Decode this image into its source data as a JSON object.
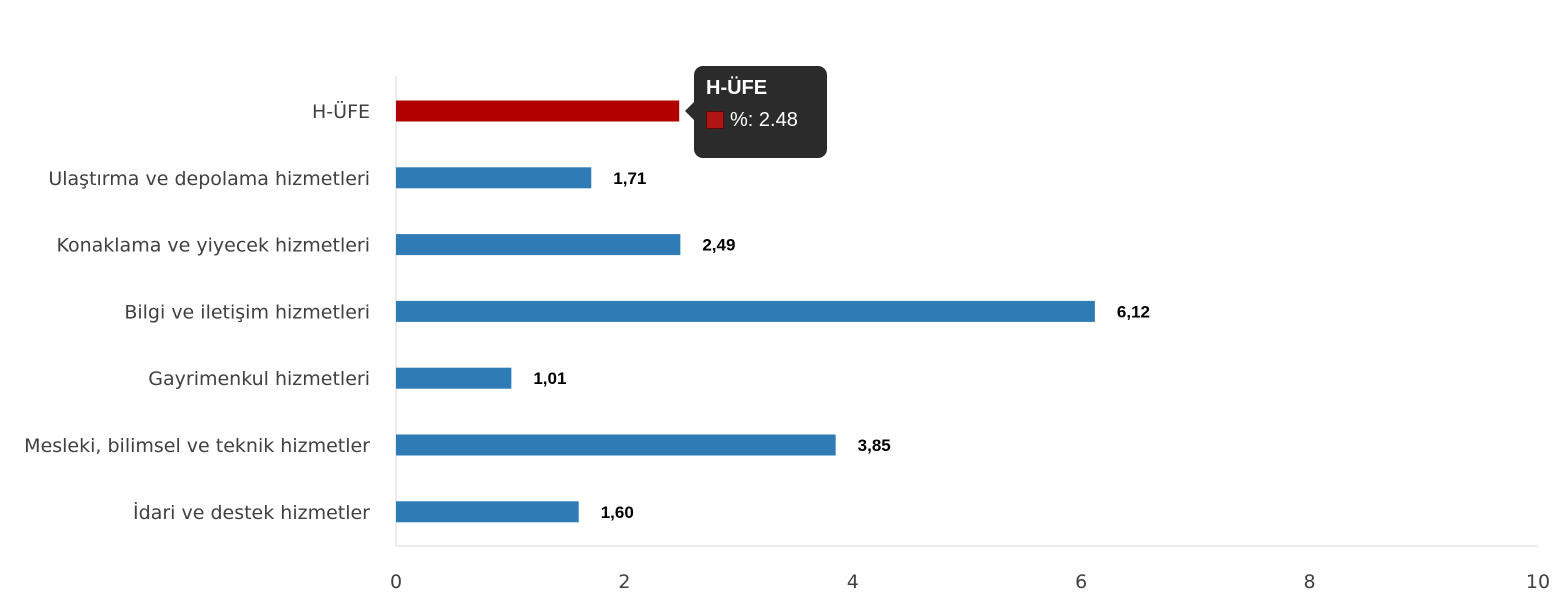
{
  "chart_data": {
    "type": "bar",
    "orientation": "horizontal",
    "categories": [
      "H-ÜFE",
      "Ulaştırma ve depolama hizmetleri",
      "Konaklama ve yiyecek hizmetleri",
      "Bilgi ve iletişim hizmetleri",
      "Gayrimenkul hizmetleri",
      "Mesleki, bilimsel ve teknik hizmetler",
      "İdari ve destek hizmetler"
    ],
    "values": [
      2.48,
      1.71,
      2.49,
      6.12,
      1.01,
      3.85,
      1.6
    ],
    "value_labels": [
      "2,48",
      "1,71",
      "2,49",
      "6,12",
      "1,01",
      "3,85",
      "1,60"
    ],
    "xlim": [
      0,
      10
    ],
    "xticks": [
      "0",
      "2",
      "4",
      "6",
      "8",
      "10"
    ],
    "colors": {
      "highlight": "#b00000",
      "default": "#2e7bb6"
    },
    "highlight_index": 0,
    "grid": false
  },
  "tooltip": {
    "title": "H-ÜFE",
    "text": "%: 2.48"
  }
}
